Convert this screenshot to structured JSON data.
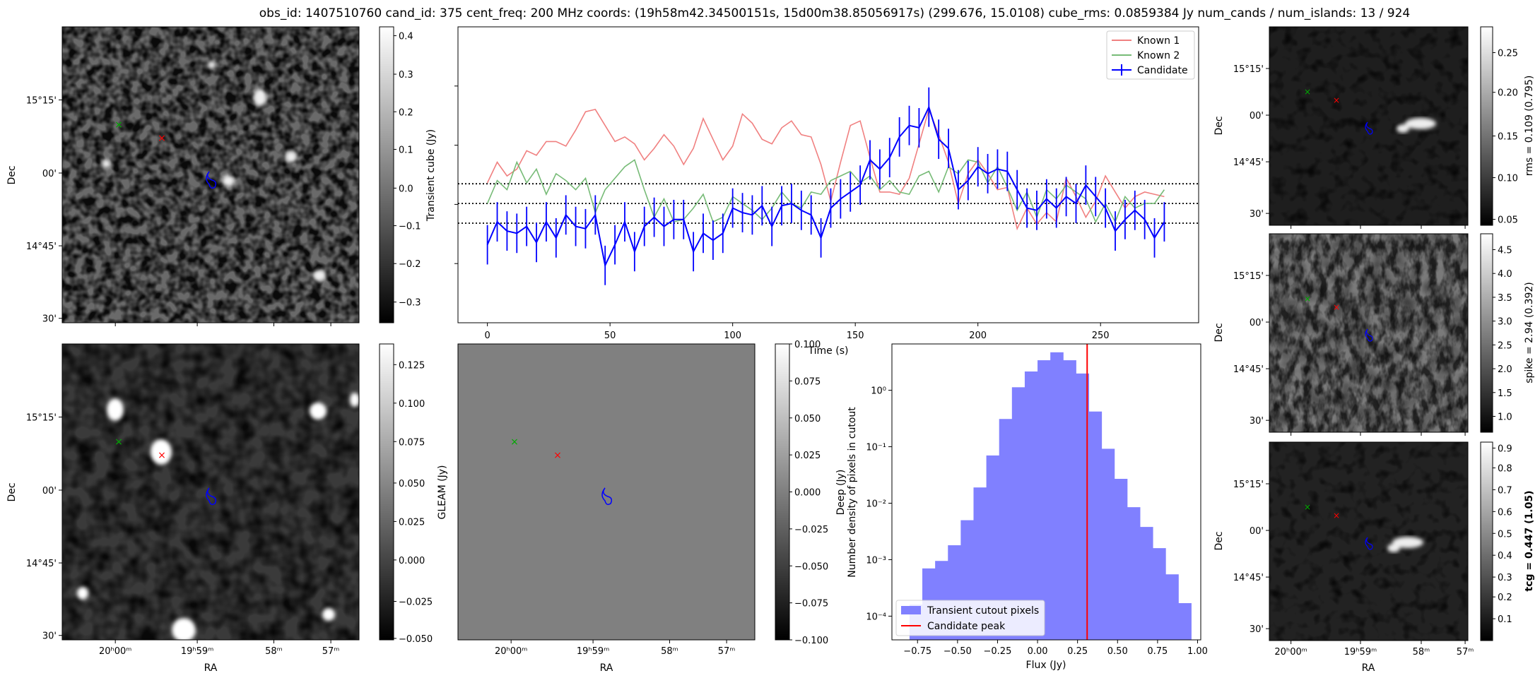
{
  "suptitle": "obs_id: 1407510760 cand_id: 375 cent_freq: 200 MHz coords: (19h58m42.34500151s, 15d00m38.85056917s) (299.676, 15.0108) cube_rms: 0.0859384 Jy num_cands / num_islands: 13 / 924",
  "ra_ticks": [
    "20h00m",
    "19h59m",
    "58m",
    "57m"
  ],
  "dec_ticks": [
    "15°15'",
    "00'",
    "14°45'",
    "30'"
  ],
  "labels": {
    "ra": "RA",
    "dec": "Dec",
    "deep": "Deep (Jy)",
    "transient_cb": "Transient cube (Jy)",
    "gleam_cb": "GLEAM (Jy)",
    "rms_cb": "rms = 0.109 (0.795)",
    "spike_cb": "spike = 2.94 (0.392)",
    "tcg_cb": "tcg = 0.447 (1.05)"
  },
  "colorbars": {
    "transient": [
      "0.4",
      "0.3",
      "0.2",
      "0.1",
      "0.0",
      "−0.1",
      "−0.2",
      "−0.3"
    ],
    "deep": [
      "0.125",
      "0.100",
      "0.075",
      "0.050",
      "0.025",
      "0.000",
      "−0.025",
      "−0.050"
    ],
    "gleam": [
      "0.100",
      "0.075",
      "0.050",
      "0.025",
      "0.000",
      "−0.025",
      "−0.050",
      "−0.075",
      "−0.100"
    ],
    "rms": [
      "0.25",
      "0.20",
      "0.15",
      "0.10",
      "0.05"
    ],
    "spike": [
      "4.5",
      "4.0",
      "3.5",
      "3.0",
      "2.5",
      "2.0",
      "1.5",
      "1.0"
    ],
    "tcg": [
      "0.9",
      "0.8",
      "0.7",
      "0.6",
      "0.5",
      "0.4",
      "0.3",
      "0.2",
      "0.1"
    ]
  },
  "colors": {
    "known1": "#f08080",
    "known2": "#77bb77",
    "candidate": "#0000ff",
    "hist": "#8080ff",
    "peak": "#ff0000",
    "gleam_bg": "#808080"
  },
  "chart_data": [
    {
      "type": "line",
      "xlabel": "Time (s)",
      "xlim": [
        -12,
        290
      ],
      "ylim": [
        -0.52,
        0.77
      ],
      "xticks": [
        0,
        50,
        100,
        150,
        200,
        250
      ],
      "hlines": [
        0.0859,
        0.0,
        -0.0859
      ],
      "legend": "top-right",
      "series": [
        {
          "name": "Known 1",
          "x": [
            0,
            4,
            8,
            12,
            16,
            20,
            24,
            28,
            32,
            36,
            40,
            44,
            48,
            52,
            56,
            60,
            64,
            68,
            72,
            76,
            80,
            84,
            88,
            92,
            96,
            100,
            104,
            108,
            112,
            116,
            120,
            124,
            128,
            132,
            136,
            140,
            144,
            148,
            152,
            156,
            160,
            164,
            168,
            172,
            176,
            180,
            184,
            188,
            192,
            196,
            200,
            204,
            208,
            212,
            216,
            220,
            224,
            228,
            232,
            236,
            240,
            244,
            248,
            252,
            256,
            260,
            264,
            268,
            272,
            276
          ],
          "values": [
            0.09,
            0.18,
            0.12,
            0.15,
            0.23,
            0.21,
            0.27,
            0.27,
            0.25,
            0.32,
            0.4,
            0.41,
            0.34,
            0.27,
            0.29,
            0.26,
            0.19,
            0.24,
            0.3,
            0.25,
            0.17,
            0.24,
            0.37,
            0.28,
            0.19,
            0.25,
            0.39,
            0.35,
            0.28,
            0.26,
            0.33,
            0.36,
            0.3,
            0.29,
            0.17,
            0.01,
            0.18,
            0.34,
            0.36,
            0.2,
            0.05,
            0.05,
            0.04,
            0.11,
            0.26,
            0.41,
            0.3,
            0.18,
            0.0,
            0.13,
            0.19,
            0.13,
            0.06,
            0.07,
            -0.11,
            -0.02,
            -0.09,
            -0.04,
            -0.08,
            0.11,
            0.03,
            -0.06,
            0.01,
            0.12,
            0.05,
            -0.02,
            0.03,
            0.05,
            0.04,
            0.03
          ]
        },
        {
          "name": "Known 2",
          "x": [
            0,
            4,
            8,
            12,
            16,
            20,
            24,
            28,
            32,
            36,
            40,
            44,
            48,
            52,
            56,
            60,
            64,
            68,
            72,
            76,
            80,
            84,
            88,
            92,
            96,
            100,
            104,
            108,
            112,
            116,
            120,
            124,
            128,
            132,
            136,
            140,
            144,
            148,
            152,
            156,
            160,
            164,
            168,
            172,
            176,
            180,
            184,
            188,
            192,
            196,
            200,
            204,
            208,
            212,
            216,
            220,
            224,
            228,
            232,
            236,
            240,
            244,
            248,
            252,
            256,
            260,
            264,
            268,
            272,
            276
          ],
          "values": [
            0.0,
            0.1,
            0.06,
            0.18,
            0.09,
            0.15,
            0.04,
            0.13,
            0.1,
            0.06,
            0.11,
            -0.04,
            0.06,
            0.11,
            0.16,
            0.19,
            0.06,
            -0.06,
            0.02,
            -0.08,
            -0.07,
            -0.02,
            0.04,
            -0.08,
            -0.06,
            0.03,
            0.0,
            -0.03,
            -0.07,
            -0.02,
            0.05,
            0.0,
            -0.02,
            0.05,
            0.04,
            0.1,
            0.12,
            0.14,
            0.09,
            0.12,
            0.06,
            0.1,
            0.05,
            0.04,
            0.12,
            0.14,
            0.05,
            0.16,
            0.13,
            0.19,
            0.18,
            0.09,
            0.16,
            0.07,
            -0.03,
            0.05,
            -0.06,
            0.06,
            0.02,
            0.08,
            0.05,
            0.02,
            -0.08,
            0.0,
            -0.08,
            0.03,
            -0.02,
            0.0,
            0.0,
            0.06
          ]
        },
        {
          "name": "Candidate",
          "x": [
            0,
            4,
            8,
            12,
            16,
            20,
            24,
            28,
            32,
            36,
            40,
            44,
            48,
            52,
            56,
            60,
            64,
            68,
            72,
            76,
            80,
            84,
            88,
            92,
            96,
            100,
            104,
            108,
            112,
            116,
            120,
            124,
            128,
            132,
            136,
            140,
            144,
            148,
            152,
            156,
            160,
            164,
            168,
            172,
            176,
            180,
            184,
            188,
            192,
            196,
            200,
            204,
            208,
            212,
            216,
            220,
            224,
            228,
            232,
            236,
            240,
            244,
            248,
            252,
            256,
            260,
            264,
            268,
            272,
            276
          ],
          "values": [
            -0.18,
            -0.08,
            -0.12,
            -0.13,
            -0.1,
            -0.17,
            -0.08,
            -0.15,
            -0.05,
            -0.1,
            -0.11,
            -0.05,
            -0.27,
            -0.18,
            -0.08,
            -0.21,
            -0.1,
            -0.06,
            -0.1,
            -0.07,
            -0.07,
            -0.21,
            -0.13,
            -0.16,
            -0.13,
            -0.02,
            -0.04,
            -0.05,
            -0.01,
            -0.1,
            -0.01,
            0.0,
            -0.03,
            -0.05,
            -0.15,
            -0.02,
            0.02,
            0.05,
            0.08,
            0.19,
            0.15,
            0.2,
            0.29,
            0.34,
            0.33,
            0.42,
            0.28,
            0.24,
            0.06,
            0.1,
            0.16,
            0.13,
            0.15,
            0.14,
            0.06,
            -0.02,
            -0.03,
            0.02,
            -0.02,
            0.03,
            0.0,
            0.08,
            0.03,
            -0.02,
            -0.12,
            -0.07,
            -0.03,
            -0.07,
            -0.15,
            -0.08
          ],
          "yerr": 0.0859
        }
      ]
    },
    {
      "type": "bar",
      "xlabel": "Flux (Jy)",
      "ylabel": "Number density of pixels in cutout",
      "yscale": "log",
      "xlim": [
        -0.91,
        1.02
      ],
      "xticks": [
        "−0.75",
        "−0.50",
        "−0.25",
        "0.00",
        "0.25",
        "0.50",
        "0.75",
        "1.00"
      ],
      "yticks": [
        "10⁰",
        "10⁻¹",
        "10⁻²",
        "10⁻³",
        "10⁻⁴"
      ],
      "bin_edges": [
        -0.8,
        -0.72,
        -0.64,
        -0.56,
        -0.48,
        -0.4,
        -0.32,
        -0.24,
        -0.16,
        -0.08,
        0.0,
        0.08,
        0.16,
        0.24,
        0.32,
        0.4,
        0.48,
        0.56,
        0.64,
        0.72,
        0.8,
        0.88,
        0.96
      ],
      "values": [
        0.00016,
        0.0007,
        0.00095,
        0.0018,
        0.005,
        0.019,
        0.07,
        0.31,
        1.13,
        2.15,
        3.4,
        4.7,
        3.4,
        1.98,
        0.42,
        0.092,
        0.027,
        0.0085,
        0.0038,
        0.0016,
        0.00055,
        0.00017
      ],
      "candidate_peak": 0.31,
      "legend": "lower-left",
      "series": [
        {
          "name": "Transient cutout pixels"
        },
        {
          "name": "Candidate peak"
        }
      ]
    }
  ]
}
